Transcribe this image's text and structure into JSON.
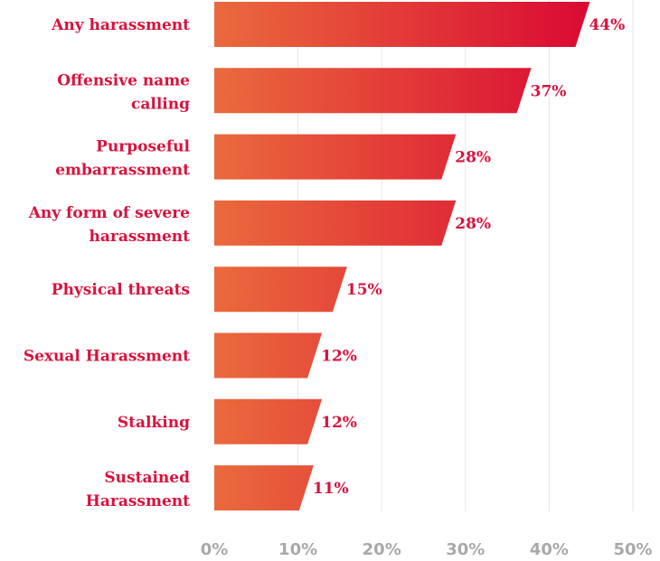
{
  "chart_data": {
    "type": "bar",
    "orientation": "horizontal",
    "title": "",
    "xlabel": "",
    "ylabel": "",
    "categories": [
      [
        "Any harassment"
      ],
      [
        "Offensive name",
        "calling"
      ],
      [
        "Purposeful",
        "embarrassment"
      ],
      [
        "Any form of severe",
        "harassment"
      ],
      [
        "Physical threats"
      ],
      [
        "Sexual Harassment"
      ],
      [
        "Stalking"
      ],
      [
        "Sustained",
        "Harassment"
      ]
    ],
    "values": [
      44,
      37,
      28,
      28,
      15,
      12,
      12,
      11
    ],
    "value_labels": [
      "44%",
      "37%",
      "28%",
      "28%",
      "15%",
      "12%",
      "12%",
      "11%"
    ],
    "xlim": [
      0,
      50
    ],
    "x_ticks": [
      0,
      10,
      20,
      30,
      40,
      50
    ],
    "x_tick_labels": [
      "0%",
      "10%",
      "20%",
      "30%",
      "40%",
      "50%"
    ],
    "grid": true,
    "colors": {
      "gradient_start": "#ea6a3c",
      "gradient_end": "#da0a33",
      "label": "#d8123c",
      "tick": "#a9a9a9",
      "grid": "#e6e6e6"
    }
  }
}
